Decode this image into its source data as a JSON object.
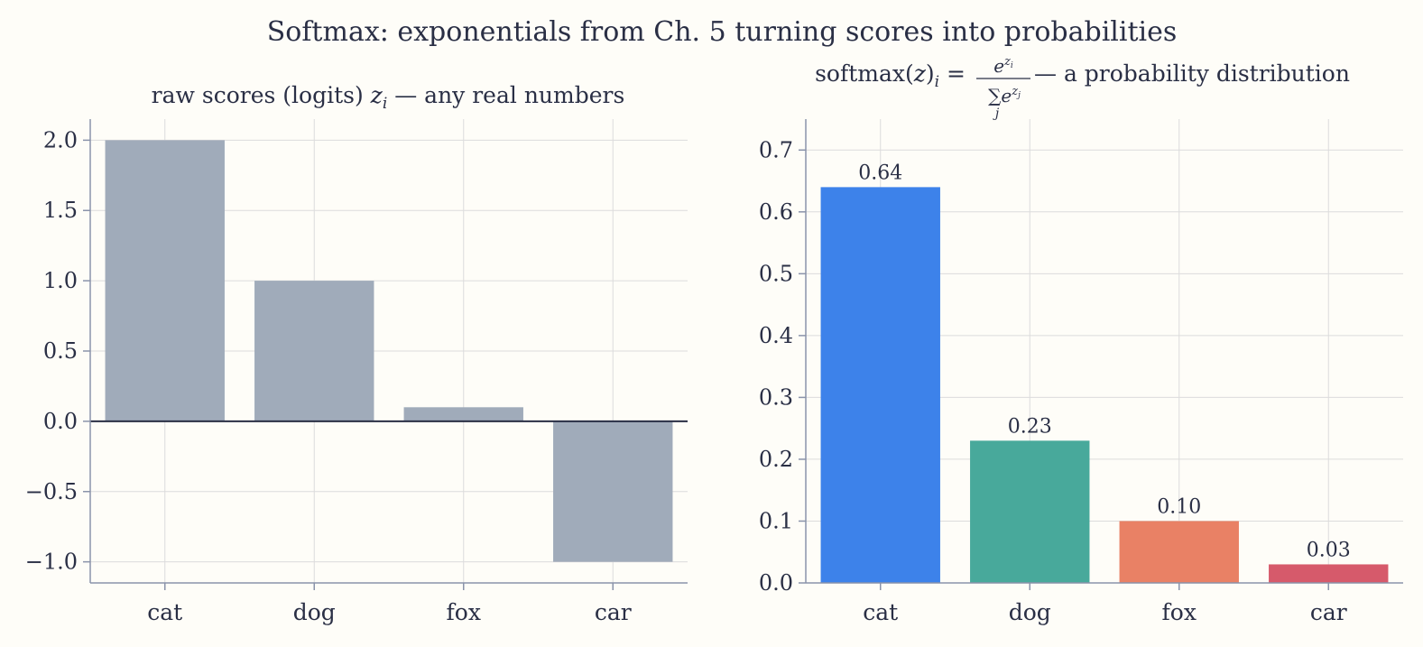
{
  "figure": {
    "title": "Softmax: exponentials from Ch. 5 turning scores into probabilities"
  },
  "chart_data": [
    {
      "type": "bar",
      "title_text": "raw scores (logits) ",
      "title_math": "z",
      "title_math_sub": "i",
      "title_rest": " — any real numbers",
      "categories": [
        "cat",
        "dog",
        "fox",
        "car"
      ],
      "values": [
        2.0,
        1.0,
        0.1,
        -1.0
      ],
      "ylim": [
        -1.15,
        2.15
      ],
      "yticks": [
        -1.0,
        -0.5,
        0.0,
        0.5,
        1.0,
        1.5,
        2.0
      ],
      "ytick_labels": [
        "−1.0",
        "−0.5",
        "0.0",
        "0.5",
        "1.0",
        "1.5",
        "2.0"
      ],
      "bar_color": "#a0abba",
      "grid": true,
      "zero_line": true
    },
    {
      "type": "bar",
      "title_text": "softmax(",
      "title_math": "z",
      "title_after_math": ")",
      "title_math_sub": "i",
      "title_eq": " = ",
      "title_num": "e",
      "title_num_sup": "z",
      "title_num_sup_sub": "i",
      "title_den_sum": "∑",
      "title_den_index": "j",
      "title_den": "e",
      "title_den_sup": "z",
      "title_den_sup_sub": "j",
      "title_rest": " — a probability distribution",
      "categories": [
        "cat",
        "dog",
        "fox",
        "car"
      ],
      "values": [
        0.64,
        0.23,
        0.1,
        0.03
      ],
      "data_labels": [
        "0.64",
        "0.23",
        "0.10",
        "0.03"
      ],
      "ylim": [
        0,
        0.75
      ],
      "yticks": [
        0.0,
        0.1,
        0.2,
        0.3,
        0.4,
        0.5,
        0.6,
        0.7
      ],
      "ytick_labels": [
        "0.0",
        "0.1",
        "0.2",
        "0.3",
        "0.4",
        "0.5",
        "0.6",
        "0.7"
      ],
      "bar_colors": [
        "#3d82ea",
        "#48a99b",
        "#e98165",
        "#d65a6b"
      ],
      "grid": true
    }
  ]
}
